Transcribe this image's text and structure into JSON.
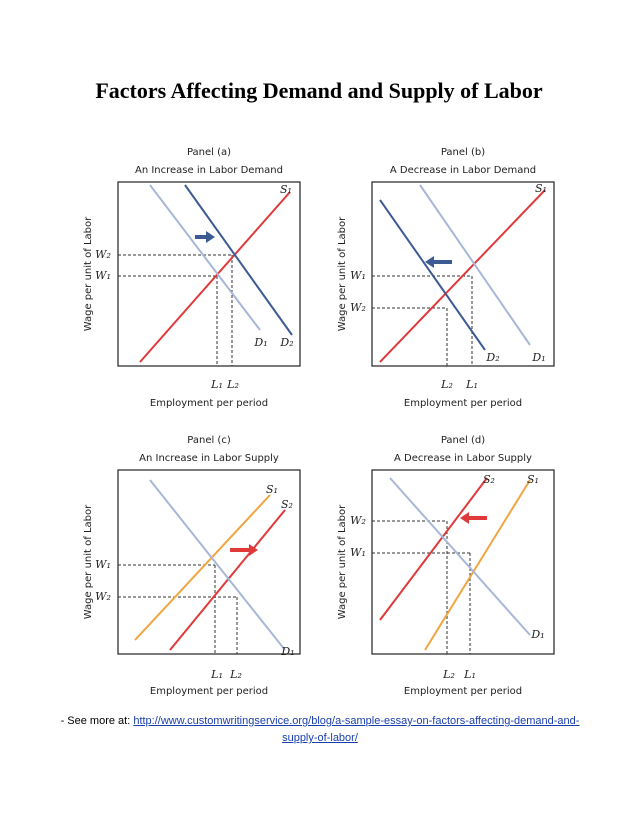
{
  "title": "Factors Affecting Demand and Supply of Labor",
  "panels": [
    {
      "panel": "Panel (a)",
      "subtitle": "An Increase in Labor Demand",
      "y_axis_label": "Wage per unit of Labor",
      "x_axis_label": "Employment per period",
      "curve_labels": [
        "S₁",
        "D₁",
        "D₂"
      ],
      "wage_labels": [
        "W₂",
        "W₁"
      ],
      "employment_labels": [
        "L₁",
        "L₂"
      ]
    },
    {
      "panel": "Panel (b)",
      "subtitle": "A Decrease in Labor Demand",
      "y_axis_label": "Wage per unit of Labor",
      "x_axis_label": "Employment per period",
      "curve_labels": [
        "S₁",
        "D₂",
        "D₁"
      ],
      "wage_labels": [
        "W₁",
        "W₂"
      ],
      "employment_labels": [
        "L₂",
        "L₁"
      ]
    },
    {
      "panel": "Panel (c)",
      "subtitle": "An Increase in Labor Supply",
      "y_axis_label": "Wage per unit of Labor",
      "x_axis_label": "Employment per period",
      "curve_labels": [
        "S₁",
        "S₂",
        "D₁"
      ],
      "wage_labels": [
        "W₁",
        "W₂"
      ],
      "employment_labels": [
        "L₁",
        "L₂"
      ]
    },
    {
      "panel": "Panel (d)",
      "subtitle": "A Decrease in Labor Supply",
      "y_axis_label": "Wage per unit of Labor",
      "x_axis_label": "Employment per period",
      "curve_labels": [
        "S₂",
        "S₁",
        "D₁"
      ],
      "wage_labels": [
        "W₂",
        "W₁"
      ],
      "employment_labels": [
        "L₂",
        "L₁"
      ]
    }
  ],
  "footer": {
    "prefix": "- See more at:",
    "link": "http://www.customwritingservice.org/blog/a-sample-essay-on-factors-affecting-demand-and-supply-of-labor/"
  }
}
